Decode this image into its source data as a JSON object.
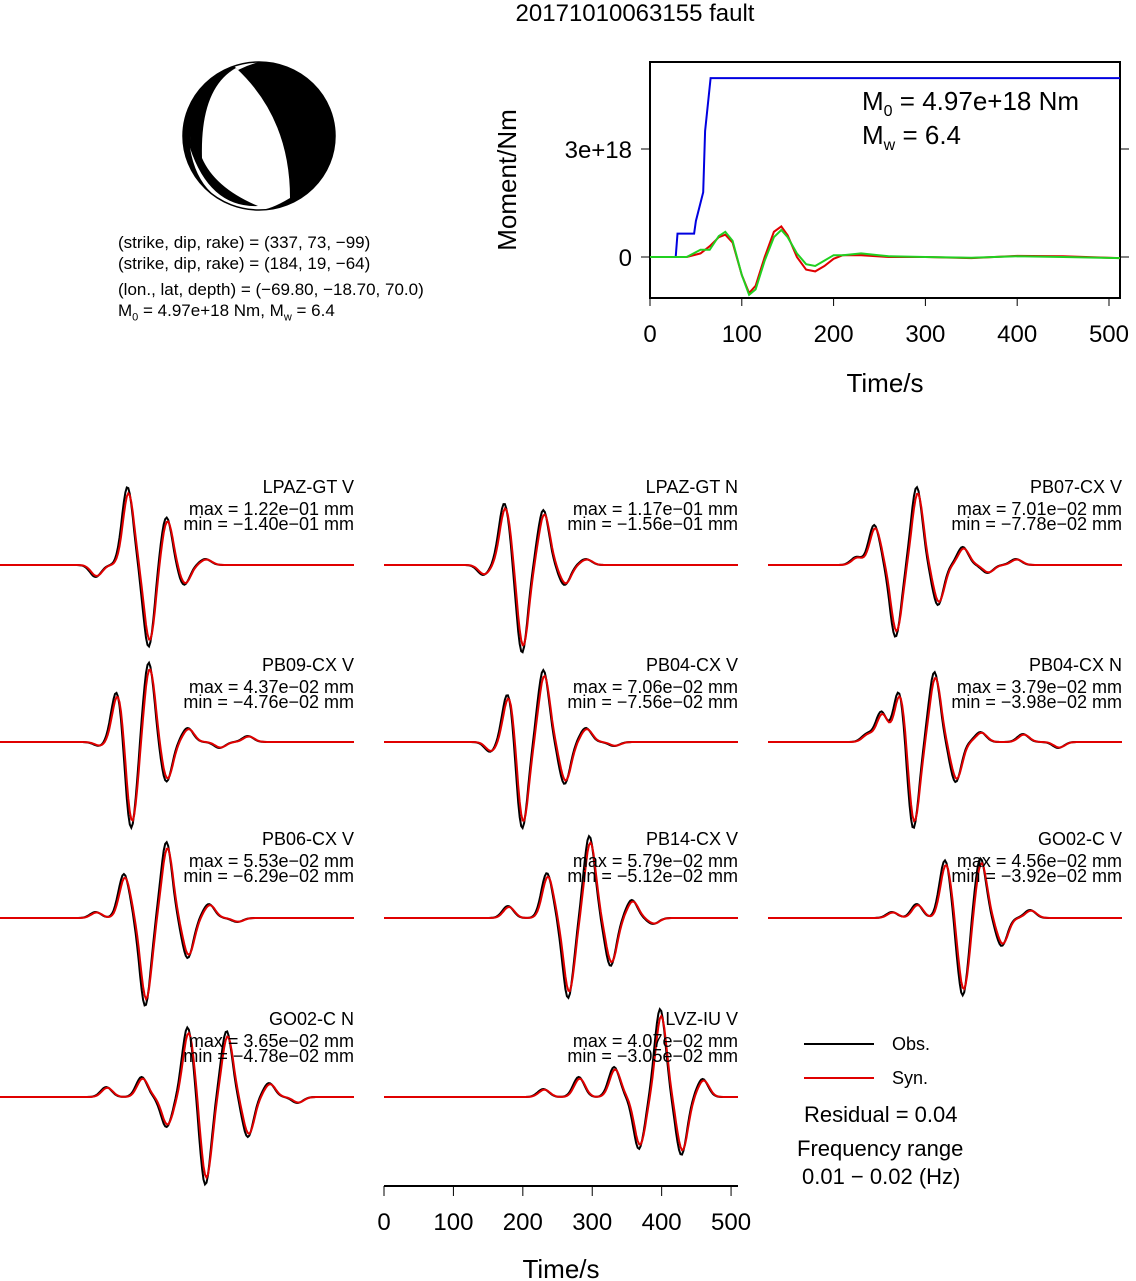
{
  "page_title": "20171010063155 fault",
  "mechanism": {
    "plane1": "(strike, dip, rake) = (337, 73, −99)",
    "plane2": "(strike, dip, rake) = (184, 19, −64)",
    "location": "(lon., lat, depth) = (−69.80, −18.70, 70.0)",
    "moment_line_prefix": "M",
    "moment_line_sub": "0",
    "moment_line_rest": " = 4.97e+18 Nm, M",
    "moment_line_sub2": "w",
    "moment_line_end": " = 6.4"
  },
  "colors": {
    "obs": "#000000",
    "syn": "#e00000",
    "cumulative": "#0000e0",
    "stf_green": "#20d020"
  },
  "stf_plot": {
    "ylabel": "Moment/Nm",
    "xlabel": "Time/s",
    "m0_label": "M",
    "m0_sub": "0",
    "m0_value": " = 4.97e+18 Nm",
    "mw_label": "M",
    "mw_sub": "w",
    "mw_value": " = 6.4"
  },
  "waveform_axis": {
    "xlabel": "Time/s"
  },
  "legend": {
    "obs_label": "Obs.",
    "syn_label": "Syn.",
    "residual": "Residual = 0.04",
    "freq_title": "Frequency range",
    "freq_value": "0.01 − 0.02 (Hz)"
  },
  "chart_data": [
    {
      "type": "line",
      "ylabel": "Moment/Nm",
      "xlabel": "Time/s",
      "xlim": [
        0,
        512
      ],
      "x_ticks": [
        "0",
        "100",
        "200",
        "300",
        "400",
        "500"
      ],
      "y_ticks": [
        "0",
        "3e+18"
      ],
      "series": [
        {
          "color": "#0000e0",
          "x": [
            0,
            28,
            30,
            48,
            50,
            58,
            60,
            66,
            512
          ],
          "y": [
            0,
            0,
            6.5e+17,
            6.5e+17,
            1e+18,
            1.8e+18,
            3.5e+18,
            4.97e+18,
            4.97e+18
          ]
        },
        {
          "color": "#e00000",
          "x": [
            0,
            40,
            55,
            65,
            75,
            82,
            90,
            100,
            108,
            115,
            125,
            135,
            143,
            150,
            160,
            170,
            180,
            190,
            200,
            210,
            230,
            260,
            300,
            350,
            400,
            450,
            512
          ],
          "y": [
            0,
            0,
            1e+17,
            3e+17,
            5.5e+17,
            6.2e+17,
            4e+17,
            -5e+17,
            -1e+18,
            -8e+17,
            0.0,
            7e+17,
            8.5e+17,
            6e+17,
            0.0,
            -3.5e+17,
            -4e+17,
            -2.5e+17,
            -5e+16,
            5e+16,
            5e+16,
            0.0,
            0.0,
            -3e+16,
            3e+16,
            2e+16,
            -3e+16
          ]
        },
        {
          "color": "#20d020",
          "x": [
            0,
            40,
            55,
            65,
            75,
            82,
            90,
            100,
            108,
            115,
            125,
            135,
            143,
            150,
            160,
            170,
            180,
            190,
            200,
            210,
            230,
            260,
            300,
            350,
            400,
            450,
            512
          ],
          "y": [
            0,
            0,
            2e+17,
            2e+17,
            5.8e+17,
            7e+17,
            4.5e+17,
            -5e+17,
            -1.05e+18,
            -9e+17,
            -1e+17,
            5.5e+17,
            7.5e+17,
            5.5e+17,
            1e+17,
            -2e+17,
            -2.5e+17,
            -1e+17,
            5e+16,
            5e+16,
            1e+17,
            2e+16,
            0.0,
            -2e+16,
            2e+16,
            0.0,
            -3e+16
          ]
        }
      ]
    },
    {
      "type": "line",
      "xlabel": "Time/s",
      "xlim": [
        0,
        510
      ],
      "x_ticks": [
        "0",
        "100",
        "200",
        "300",
        "400",
        "500"
      ],
      "stations": [
        {
          "name": "LPAZ-GT V",
          "max": "max = 1.22e−01 mm",
          "min": "min = −1.40e−01 mm"
        },
        {
          "name": "LPAZ-GT N",
          "max": "max = 1.17e−01 mm",
          "min": "min = −1.56e−01 mm"
        },
        {
          "name": "PB07-CX V",
          "max": "max = 7.01e−02 mm",
          "min": "min = −7.78e−02 mm"
        },
        {
          "name": "PB09-CX V",
          "max": "max = 4.37e−02 mm",
          "min": "min = −4.76e−02 mm"
        },
        {
          "name": "PB04-CX V",
          "max": "max = 7.06e−02 mm",
          "min": "min = −7.56e−02 mm"
        },
        {
          "name": "PB04-CX N",
          "max": "max = 3.79e−02 mm",
          "min": "min = −3.98e−02 mm"
        },
        {
          "name": "PB06-CX V",
          "max": "max = 5.53e−02 mm",
          "min": "min = −6.29e−02 mm"
        },
        {
          "name": "PB14-CX V",
          "max": "max = 5.79e−02 mm",
          "min": "min = −5.12e−02 mm"
        },
        {
          "name": "GO02-C V",
          "max": "max = 4.56e−02 mm",
          "min": "min = −3.92e−02 mm"
        },
        {
          "name": "GO02-C N",
          "max": "max = 3.65e−02 mm",
          "min": "min = −4.78e−02 mm"
        },
        {
          "name": "LVZ-IU V",
          "max": "max = 4.07e−02 mm",
          "min": "min = −3.05e−02 mm"
        }
      ]
    }
  ]
}
